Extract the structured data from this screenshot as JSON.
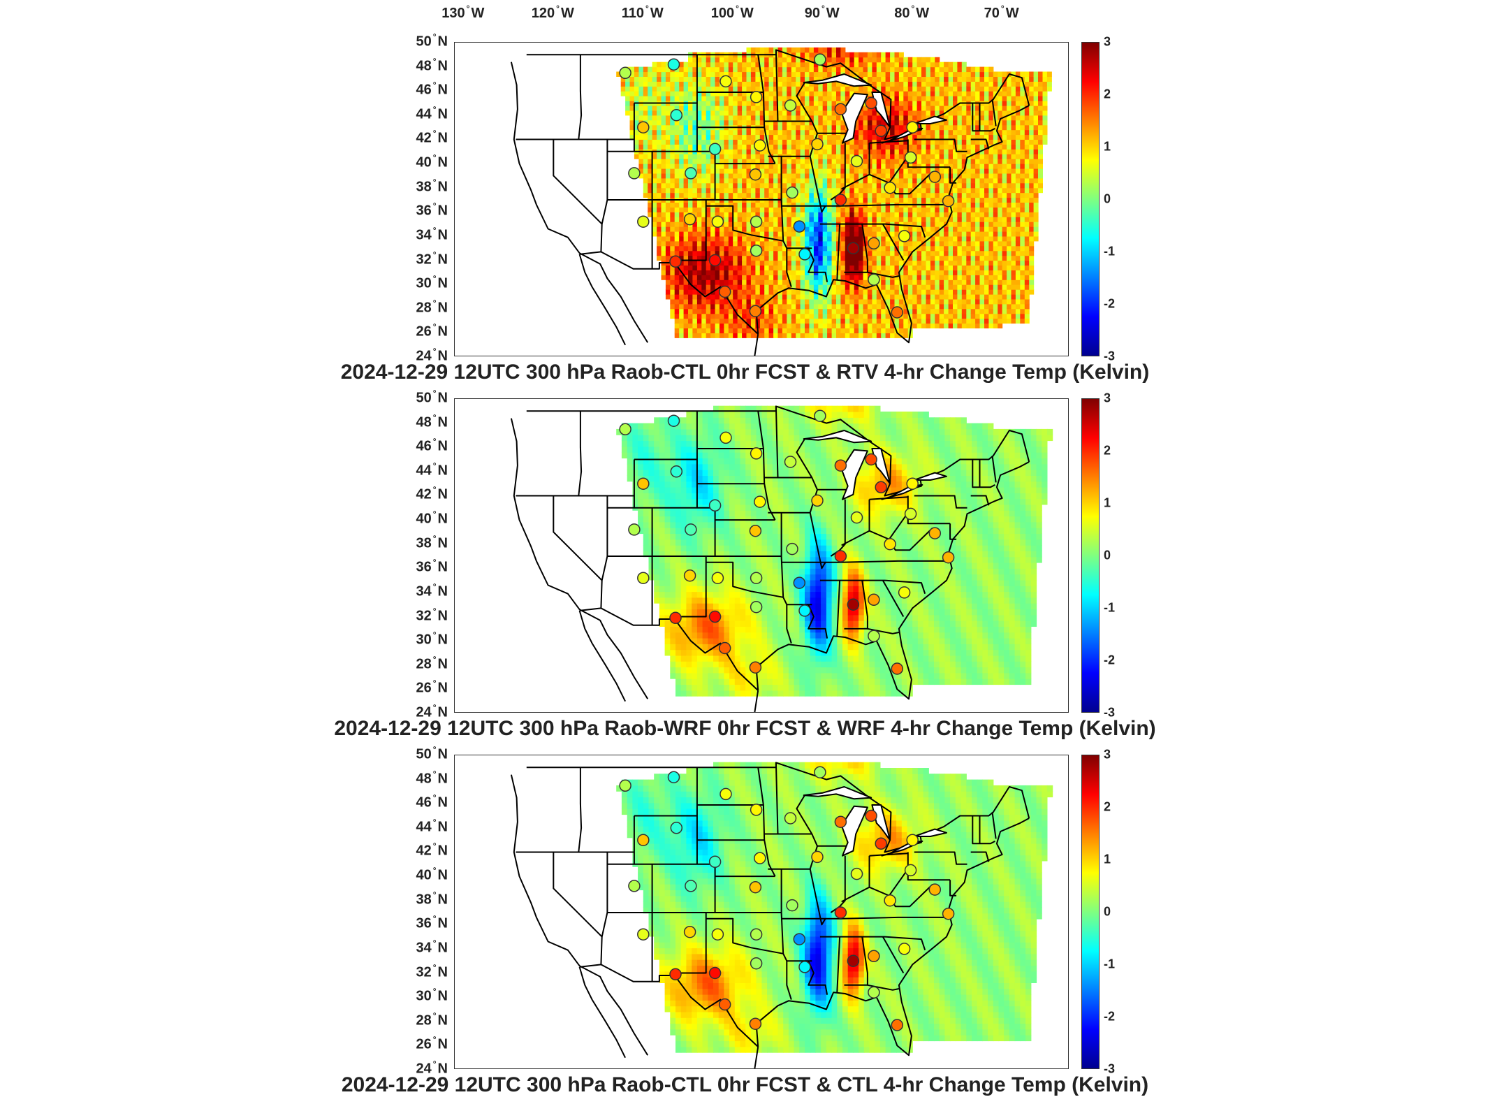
{
  "longitude_labels": [
    "130",
    "120",
    "110",
    "100",
    "90",
    "80",
    "70"
  ],
  "longitude_suffix": "W",
  "latitude_labels": [
    "50",
    "48",
    "46",
    "44",
    "42",
    "40",
    "38",
    "36",
    "34",
    "32",
    "30",
    "28",
    "26",
    "24"
  ],
  "latitude_suffix": "N",
  "degree_symbol": "°",
  "colorbar_ticks": [
    "3",
    "2",
    "1",
    "0",
    "-1",
    "-2",
    "-3"
  ],
  "colorbar_range": [
    -3,
    3
  ],
  "colormap": [
    "#00008f",
    "#0000ff",
    "#0080ff",
    "#00ffff",
    "#80ff80",
    "#ffff00",
    "#ff8000",
    "#ff0000",
    "#800000"
  ],
  "panels": [
    {
      "title": "2024-12-29 12UTC 300 hPa Raob-CTL 0hr FCST & RTV 4-hr Change Temp (Kelvin)",
      "field_style": "noisy-warm"
    },
    {
      "title": "2024-12-29 12UTC 300 hPa Raob-WRF 0hr FCST & WRF 4-hr Change Temp (Kelvin)",
      "field_style": "smooth"
    },
    {
      "title": "2024-12-29 12UTC 300 hPa Raob-CTL 0hr FCST & CTL 4-hr Change Temp (Kelvin)",
      "field_style": "smooth"
    }
  ],
  "stations": [
    {
      "lon": -112.0,
      "lat": 47.5,
      "value": 0.3
    },
    {
      "lon": -106.6,
      "lat": 48.2,
      "value": -0.6
    },
    {
      "lon": -100.8,
      "lat": 46.8,
      "value": 0.7
    },
    {
      "lon": -97.4,
      "lat": 45.5,
      "value": 0.8
    },
    {
      "lon": -90.3,
      "lat": 48.6,
      "value": 0.2
    },
    {
      "lon": -106.3,
      "lat": 44.0,
      "value": -0.5
    },
    {
      "lon": -110.0,
      "lat": 43.0,
      "value": 1.1
    },
    {
      "lon": -93.6,
      "lat": 44.8,
      "value": 0.4
    },
    {
      "lon": -88.0,
      "lat": 44.5,
      "value": 1.6
    },
    {
      "lon": -84.6,
      "lat": 45.0,
      "value": 1.8
    },
    {
      "lon": -83.5,
      "lat": 42.7,
      "value": 1.9
    },
    {
      "lon": -80.0,
      "lat": 43.0,
      "value": 0.8
    },
    {
      "lon": -102.0,
      "lat": 41.2,
      "value": -0.4
    },
    {
      "lon": -97.0,
      "lat": 41.5,
      "value": 0.8
    },
    {
      "lon": -90.6,
      "lat": 41.6,
      "value": 1.0
    },
    {
      "lon": -86.2,
      "lat": 40.2,
      "value": 0.6
    },
    {
      "lon": -80.2,
      "lat": 40.5,
      "value": 0.5
    },
    {
      "lon": -111.0,
      "lat": 39.2,
      "value": 0.3
    },
    {
      "lon": -104.7,
      "lat": 39.2,
      "value": -0.3
    },
    {
      "lon": -97.5,
      "lat": 39.1,
      "value": 1.1
    },
    {
      "lon": -93.4,
      "lat": 37.6,
      "value": 0.2
    },
    {
      "lon": -88.0,
      "lat": 37.0,
      "value": 2.0
    },
    {
      "lon": -82.5,
      "lat": 38.0,
      "value": 0.9
    },
    {
      "lon": -77.5,
      "lat": 38.9,
      "value": 1.2
    },
    {
      "lon": -76.0,
      "lat": 36.9,
      "value": 1.2
    },
    {
      "lon": -110.0,
      "lat": 35.2,
      "value": 0.6
    },
    {
      "lon": -104.8,
      "lat": 35.4,
      "value": 1.0
    },
    {
      "lon": -101.7,
      "lat": 35.2,
      "value": 0.7
    },
    {
      "lon": -97.4,
      "lat": 35.2,
      "value": 0.3
    },
    {
      "lon": -92.6,
      "lat": 34.8,
      "value": -1.4
    },
    {
      "lon": -86.6,
      "lat": 33.0,
      "value": 2.8
    },
    {
      "lon": -84.3,
      "lat": 33.4,
      "value": 1.3
    },
    {
      "lon": -80.9,
      "lat": 34.0,
      "value": 0.7
    },
    {
      "lon": -106.4,
      "lat": 31.9,
      "value": 2.0
    },
    {
      "lon": -102.0,
      "lat": 32.0,
      "value": 2.2
    },
    {
      "lon": -97.4,
      "lat": 32.8,
      "value": 0.2
    },
    {
      "lon": -92.0,
      "lat": 32.5,
      "value": -0.8
    },
    {
      "lon": -84.3,
      "lat": 30.4,
      "value": 0.3
    },
    {
      "lon": -100.9,
      "lat": 29.4,
      "value": 1.7
    },
    {
      "lon": -97.5,
      "lat": 27.8,
      "value": 1.5
    },
    {
      "lon": -81.7,
      "lat": 27.7,
      "value": 1.6
    }
  ]
}
